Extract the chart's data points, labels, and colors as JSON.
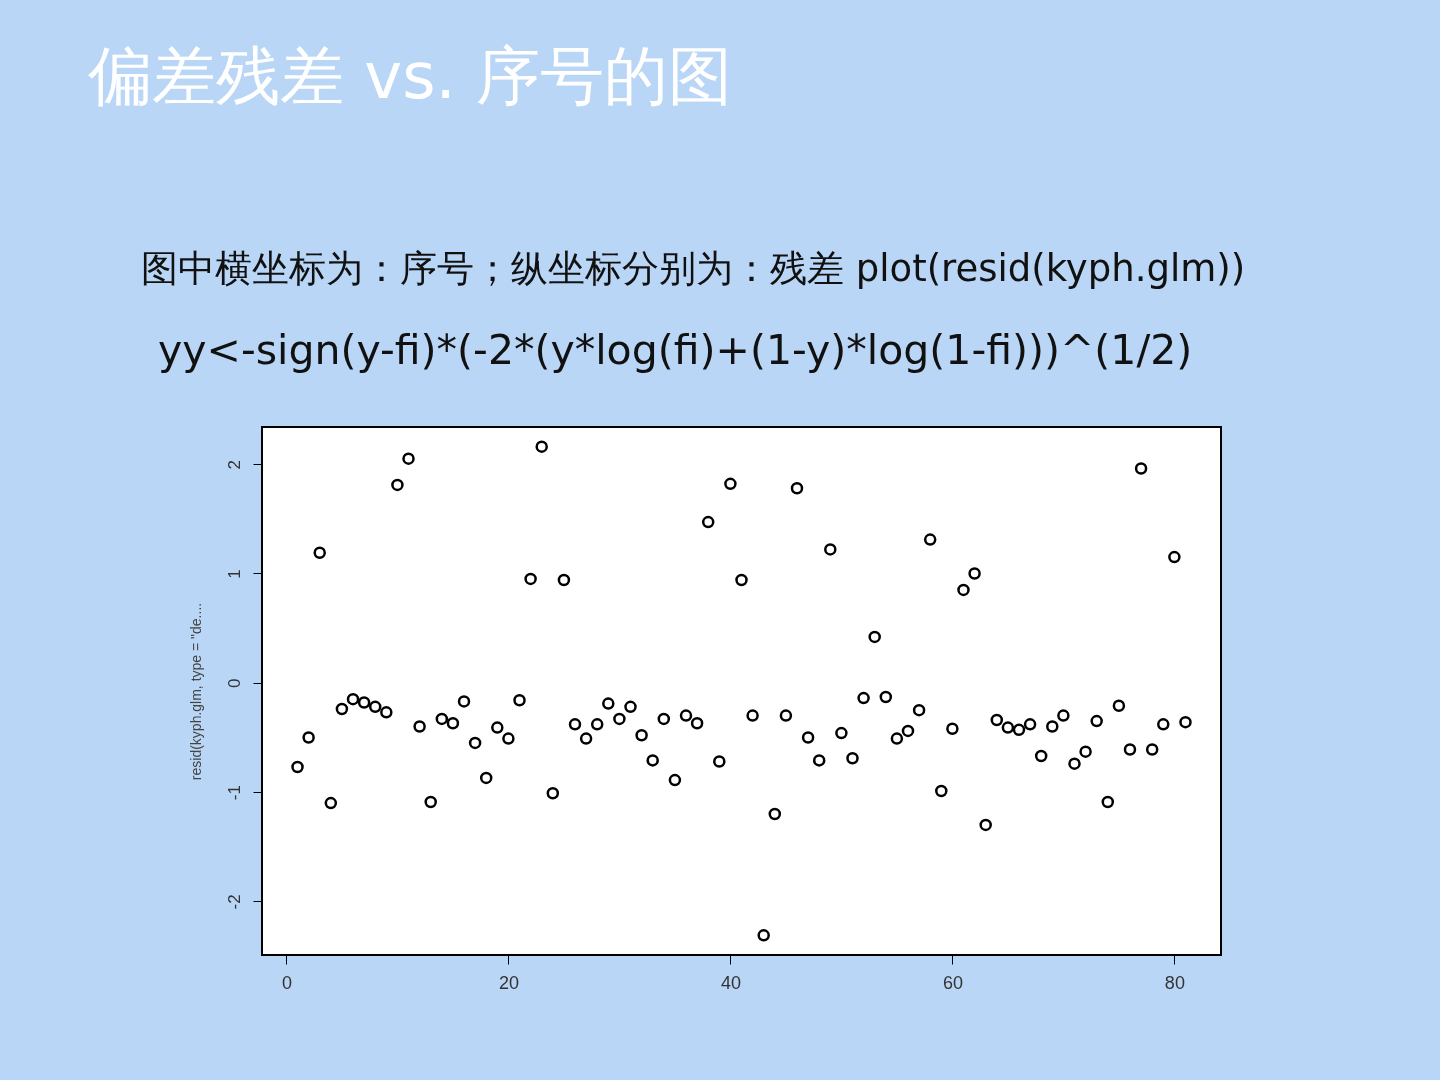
{
  "chart_data": {
    "type": "scatter",
    "title": "偏差残差 vs. 序号的图",
    "annotations": [
      "图中横坐标为：序号；纵坐标分别为：残差 plot(resid(kyph.glm))",
      "yy<-sign(y-fi)*(-2*(y*log(fi)+(1-y)*log(1-fi)))^(1/2)"
    ],
    "ylabel": "resid(kyph.glm, type = \"de....",
    "x": [
      1,
      2,
      3,
      4,
      5,
      6,
      7,
      8,
      9,
      10,
      11,
      12,
      13,
      14,
      15,
      16,
      17,
      18,
      19,
      20,
      21,
      22,
      23,
      24,
      25,
      26,
      27,
      28,
      29,
      30,
      31,
      32,
      33,
      34,
      35,
      36,
      37,
      38,
      39,
      40,
      41,
      42,
      43,
      44,
      45,
      46,
      47,
      48,
      49,
      50,
      51,
      52,
      53,
      54,
      55,
      56,
      57,
      58,
      59,
      60,
      61,
      62,
      63,
      64,
      65,
      66,
      67,
      68,
      69,
      70,
      71,
      72,
      73,
      74,
      75,
      76,
      77,
      78,
      79,
      80,
      81
    ],
    "values": [
      -0.77,
      -0.5,
      1.19,
      -1.1,
      -0.24,
      -0.15,
      -0.18,
      -0.22,
      -0.27,
      1.81,
      2.05,
      -0.4,
      -1.09,
      -0.33,
      -0.37,
      -0.17,
      -0.55,
      -0.87,
      -0.41,
      -0.51,
      -0.16,
      0.95,
      2.16,
      -1.01,
      0.94,
      -0.38,
      -0.51,
      -0.38,
      -0.19,
      -0.33,
      -0.22,
      -0.48,
      -0.71,
      -0.33,
      -0.89,
      -0.3,
      -0.37,
      1.47,
      -0.72,
      1.82,
      0.94,
      -0.3,
      -2.31,
      -1.2,
      -0.3,
      1.78,
      -0.5,
      -0.71,
      1.22,
      -0.46,
      -0.69,
      -0.14,
      0.42,
      -0.13,
      -0.51,
      -0.44,
      -0.25,
      1.31,
      -0.99,
      -0.42,
      0.85,
      1.0,
      -1.3,
      -0.34,
      -0.41,
      -0.43,
      -0.38,
      -0.67,
      -0.4,
      -0.3,
      -0.74,
      -0.63,
      -0.35,
      -1.09,
      -0.21,
      -0.61,
      1.96,
      -0.61,
      -0.38,
      1.15,
      -0.36
    ],
    "color": "#000000",
    "marker": "circle",
    "xlim": [
      -2.2,
      84.2
    ],
    "ylim": [
      -2.49,
      2.34
    ],
    "xticks": [
      0,
      20,
      40,
      60,
      80
    ],
    "yticks": [
      -2,
      -1,
      0,
      1,
      2
    ]
  }
}
